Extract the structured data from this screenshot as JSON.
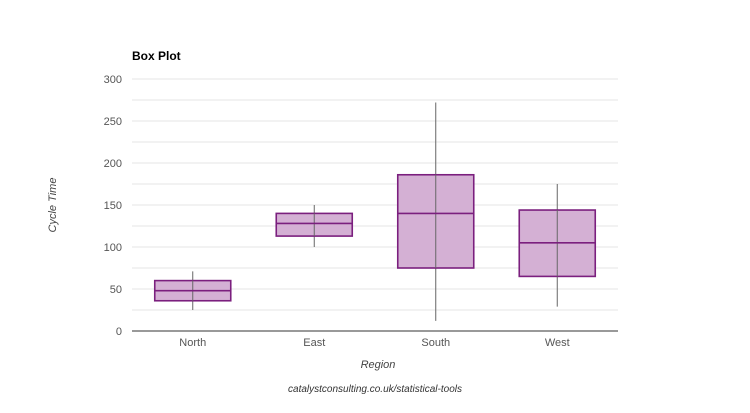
{
  "chart_data": {
    "type": "box",
    "title": "Box Plot",
    "xlabel": "Region",
    "ylabel": "Cycle Time",
    "ylim": [
      0,
      300
    ],
    "yticks": [
      0,
      50,
      100,
      150,
      200,
      250,
      300
    ],
    "grid": true,
    "legend": "none",
    "categories": [
      "North",
      "East",
      "South",
      "West"
    ],
    "boxes": [
      {
        "category": "North",
        "min": 25,
        "q1": 36,
        "median": 48,
        "q3": 60,
        "max": 71
      },
      {
        "category": "East",
        "min": 100,
        "q1": 113,
        "median": 128,
        "q3": 140,
        "max": 150
      },
      {
        "category": "South",
        "min": 12,
        "q1": 75,
        "median": 140,
        "q3": 186,
        "max": 272
      },
      {
        "category": "West",
        "min": 29,
        "q1": 65,
        "median": 105,
        "q3": 144,
        "max": 175
      }
    ]
  },
  "colors": {
    "box_fill": "#d4b0d4",
    "box_stroke": "#7b1f7e",
    "whisker": "#666666",
    "grid": "#e6e6e6",
    "axis": "#333333"
  },
  "footer": "catalystconsulting.co.uk/statistical-tools"
}
